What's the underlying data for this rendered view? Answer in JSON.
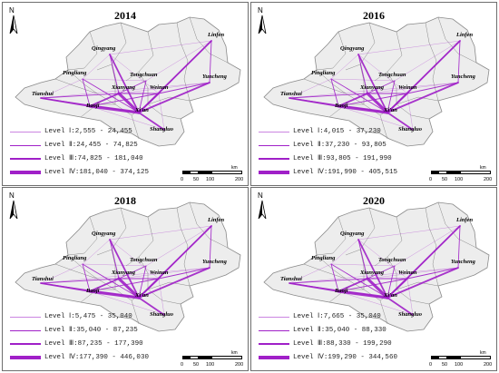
{
  "panels": [
    {
      "year": "2014",
      "legend": [
        {
          "level": "Level Ⅰ:2,555 - 24,455"
        },
        {
          "level": "Level Ⅱ:24,455 - 74,825"
        },
        {
          "level": "Level Ⅲ:74,825 - 181,040"
        },
        {
          "level": "Level Ⅳ:181,040 - 374,125"
        }
      ]
    },
    {
      "year": "2016",
      "legend": [
        {
          "level": "Level Ⅰ:4,015 - 37,230"
        },
        {
          "level": "Level Ⅱ:37,230 - 93,805"
        },
        {
          "level": "Level Ⅲ:93,805 - 191,990"
        },
        {
          "level": "Level Ⅳ:191,990 - 405,515"
        }
      ]
    },
    {
      "year": "2018",
      "legend": [
        {
          "level": "Level Ⅰ:5,475 - 35,040"
        },
        {
          "level": "Level Ⅱ:35,040 - 87,235"
        },
        {
          "level": "Level Ⅲ:87,235 - 177,390"
        },
        {
          "level": "Level Ⅳ:177,390 - 446,030"
        }
      ]
    },
    {
      "year": "2020",
      "legend": [
        {
          "level": "Level Ⅰ:7,665 - 35,040"
        },
        {
          "level": "Level Ⅱ:35,040 - 88,330"
        },
        {
          "level": "Level Ⅲ:88,330 - 199,290"
        },
        {
          "level": "Level Ⅳ:199,290 - 344,560"
        }
      ]
    }
  ],
  "cities": [
    "Qingyang",
    "Linfen",
    "Pingliang",
    "Tongchuan",
    "Yuncheng",
    "Xianyang",
    "Weinan",
    "Tianshui",
    "Baoji",
    "Xi'an",
    "Shangluo"
  ],
  "north_label": "N",
  "scale": {
    "unit": "km",
    "ticks": [
      "0",
      "50",
      "100",
      "200"
    ]
  },
  "colors": {
    "flow": "#a020c8",
    "region_fill": "#ededed",
    "region_stroke": "#8a8a8a"
  }
}
